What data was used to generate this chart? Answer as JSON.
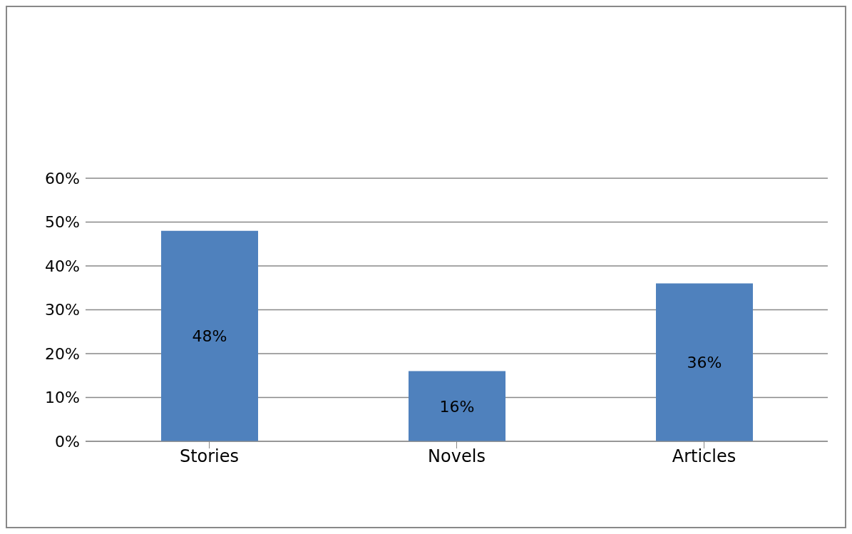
{
  "chart_data": {
    "type": "bar",
    "categories": [
      "Stories",
      "Novels",
      "Articles"
    ],
    "values": [
      48,
      16,
      36
    ],
    "color": "#4f81bd",
    "ylim": [
      0,
      60
    ],
    "yticks": [
      {
        "value": 0,
        "label": "0%"
      },
      {
        "value": 10,
        "label": "10%"
      },
      {
        "value": 20,
        "label": "20%"
      },
      {
        "value": 30,
        "label": "30%"
      },
      {
        "value": 40,
        "label": "40%"
      },
      {
        "value": 50,
        "label": "50%"
      },
      {
        "value": 60,
        "label": "60%"
      }
    ],
    "value_labels": [
      "48%",
      "16%",
      "36%"
    ],
    "grid": "y"
  }
}
